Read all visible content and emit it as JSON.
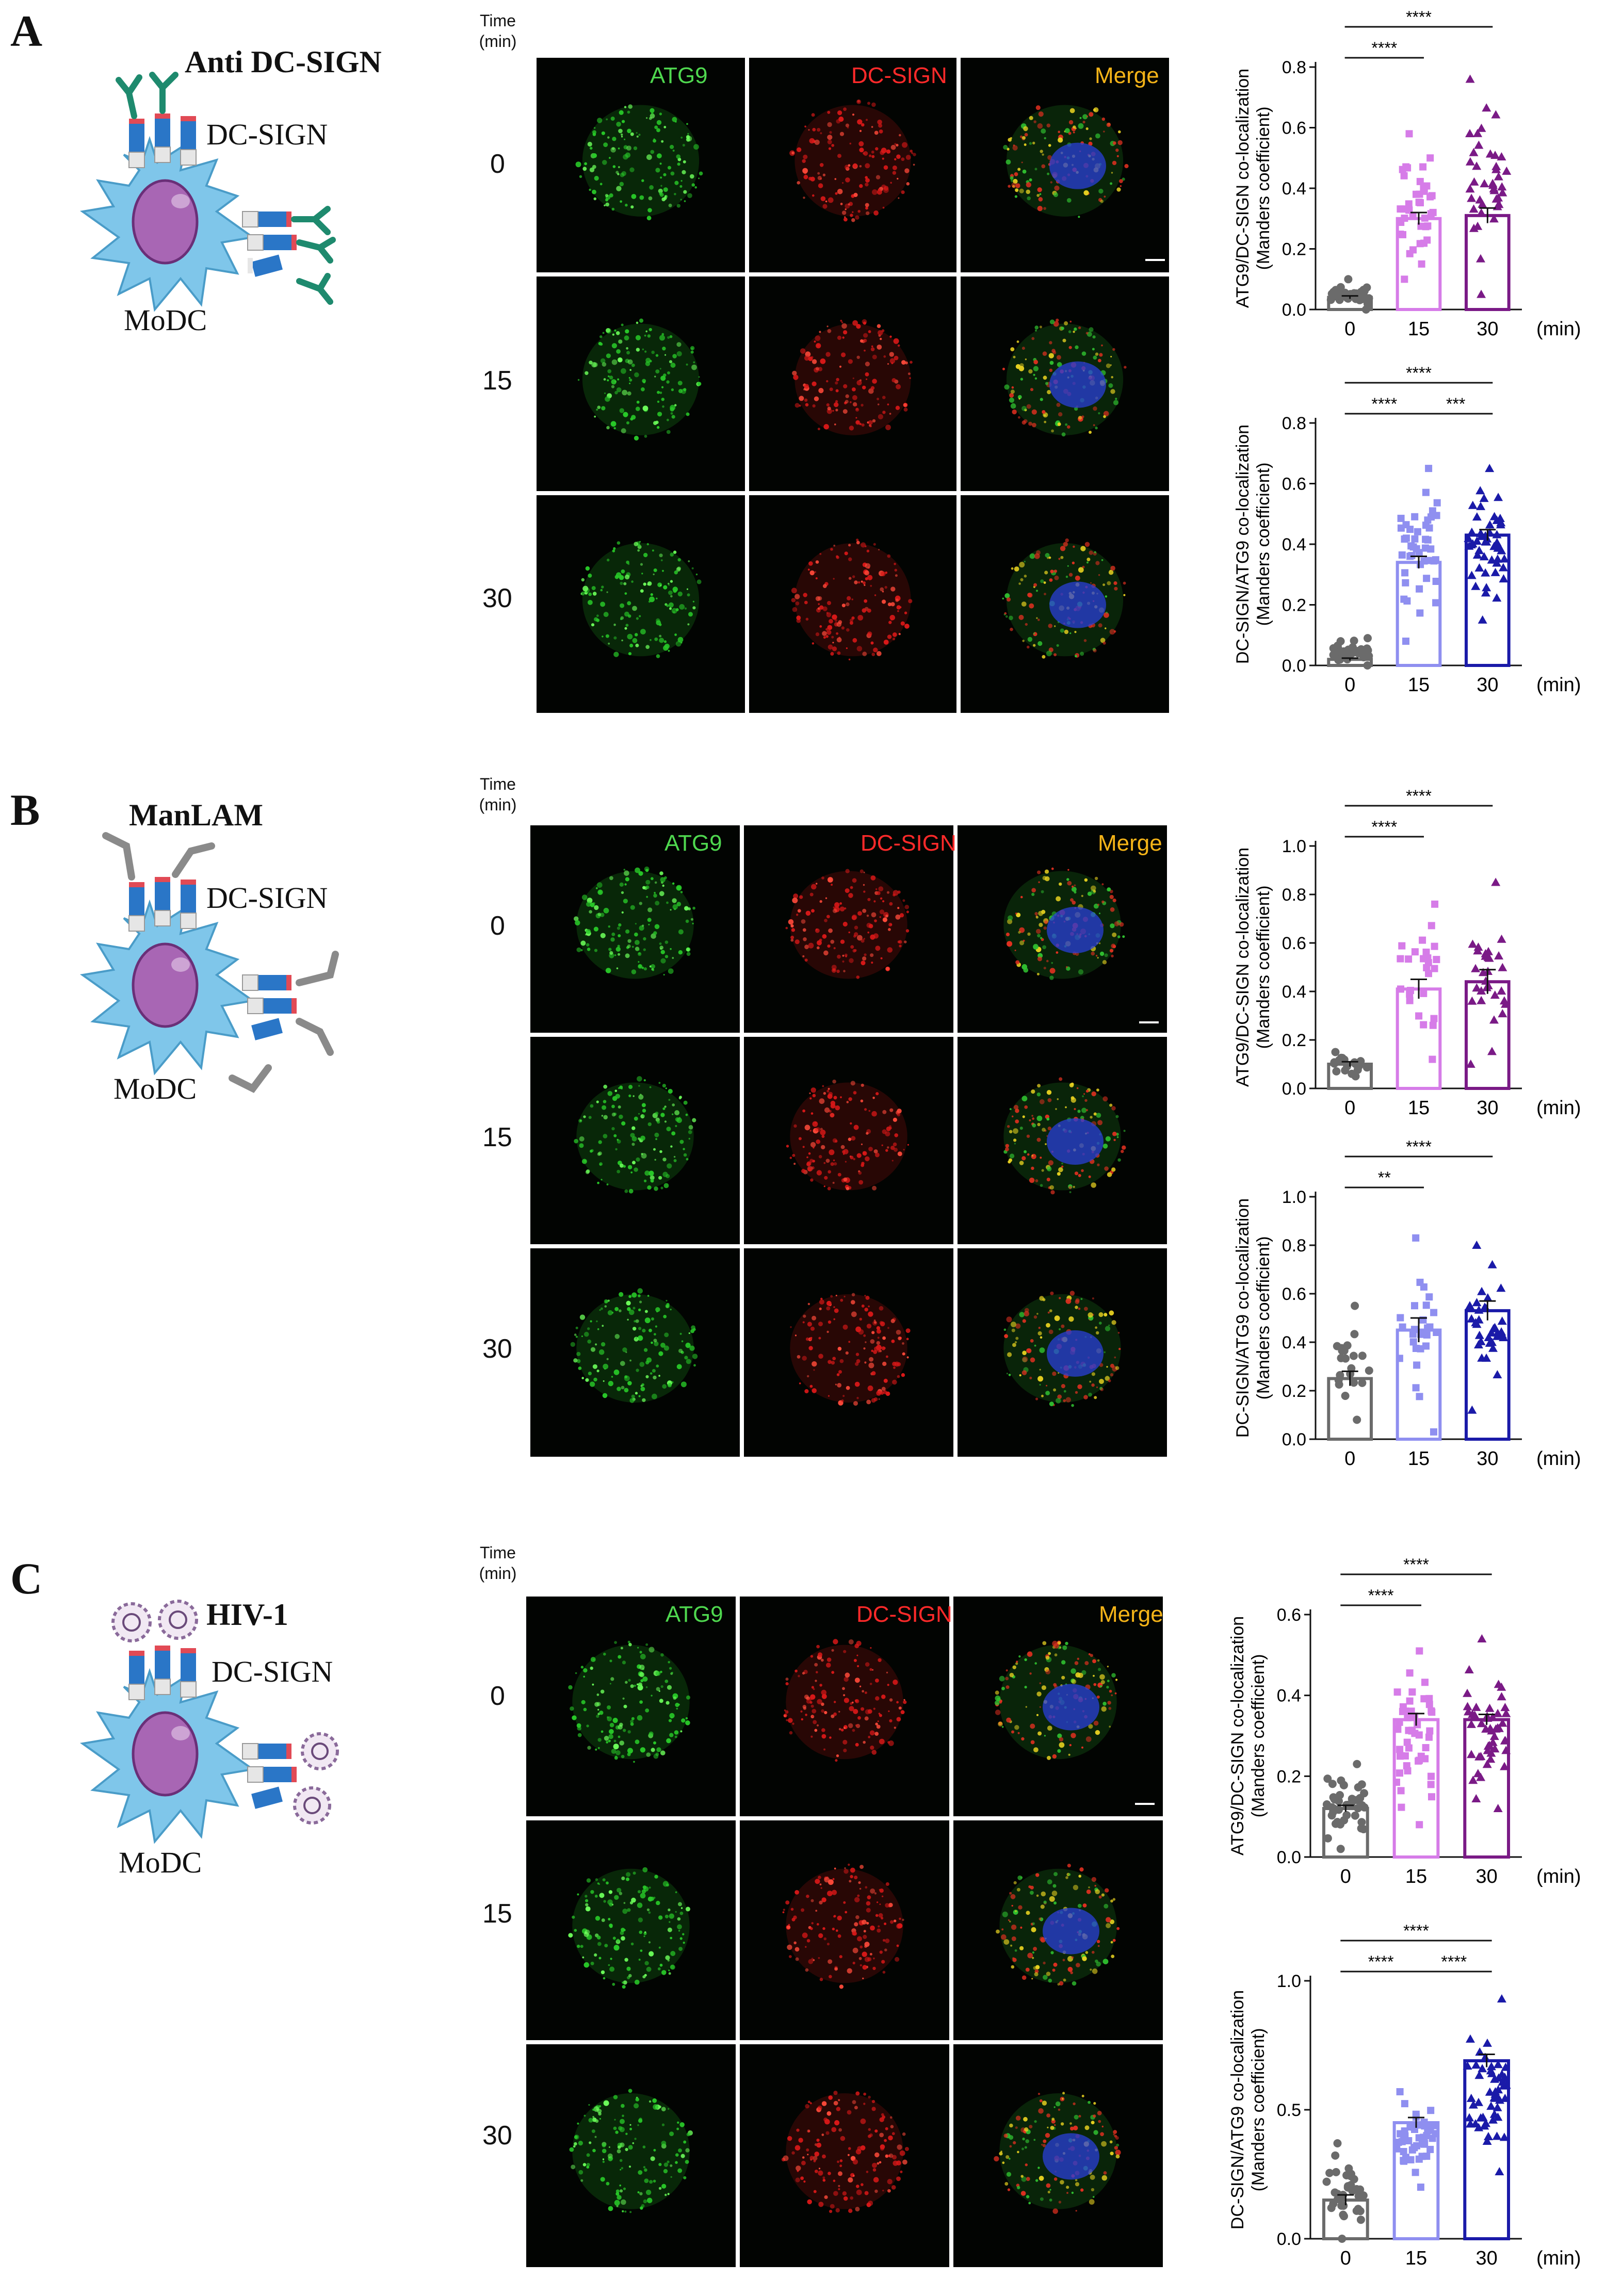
{
  "panels": [
    {
      "id": "A",
      "label": "A",
      "cartoon": {
        "ligand": "Anti DC-SIGN",
        "receptor": "DC-SIGN",
        "cell": "MoDC"
      },
      "micro": {
        "time_header": [
          "Time",
          "(min)"
        ],
        "channels": [
          "ATG9",
          "DC-SIGN",
          "Merge"
        ],
        "timepoints": [
          "0",
          "15",
          "30"
        ]
      },
      "charts": [
        {
          "type": "bar",
          "ylabel": [
            "ATG9/DC-SIGN co-localization",
            "(Manders coefficient)"
          ],
          "categories": [
            "0",
            "15",
            "30"
          ],
          "unit_label": "(min)",
          "yticks": [
            "0.0",
            "0.2",
            "0.4",
            "0.6",
            "0.8"
          ],
          "ylim": [
            0,
            0.8
          ],
          "values": [
            0.04,
            0.3,
            0.31
          ],
          "errors": [
            0.005,
            0.02,
            0.025
          ],
          "colors": [
            "#6b6b6b",
            "#d67ce8",
            "#7a1a86"
          ],
          "markers": [
            "circle",
            "square",
            "triangle"
          ],
          "point_ranges": [
            [
              0.0,
              0.1
            ],
            [
              0.1,
              0.58
            ],
            [
              0.05,
              0.76
            ]
          ],
          "point_counts": [
            40,
            40,
            40
          ],
          "significance": [
            {
              "from": 0,
              "to": 1,
              "label": "****",
              "level": 1
            },
            {
              "from": 0,
              "to": 2,
              "label": "****",
              "level": 2
            }
          ]
        },
        {
          "type": "bar",
          "ylabel": [
            "DC-SIGN/ATG9 co-localization",
            "(Manders coefficient)"
          ],
          "categories": [
            "0",
            "15",
            "30"
          ],
          "unit_label": "(min)",
          "yticks": [
            "0.0",
            "0.2",
            "0.4",
            "0.6",
            "0.8"
          ],
          "ylim": [
            0,
            0.8
          ],
          "values": [
            0.02,
            0.34,
            0.43
          ],
          "errors": [
            0.004,
            0.02,
            0.018
          ],
          "colors": [
            "#6b6b6b",
            "#8f8ff0",
            "#1a1aa8"
          ],
          "markers": [
            "circle",
            "square",
            "triangle"
          ],
          "point_ranges": [
            [
              0.0,
              0.09
            ],
            [
              0.08,
              0.65
            ],
            [
              0.15,
              0.65
            ]
          ],
          "point_counts": [
            40,
            44,
            50
          ],
          "significance": [
            {
              "from": 0,
              "to": 1,
              "label": "****",
              "level": 1
            },
            {
              "from": 1,
              "to": 2,
              "label": "***",
              "level": 1
            },
            {
              "from": 0,
              "to": 2,
              "label": "****",
              "level": 2
            }
          ]
        }
      ]
    },
    {
      "id": "B",
      "label": "B",
      "cartoon": {
        "ligand": "ManLAM",
        "receptor": "DC-SIGN",
        "cell": "MoDC"
      },
      "micro": {
        "time_header": [
          "Time",
          "(min)"
        ],
        "channels": [
          "ATG9",
          "DC-SIGN",
          "Merge"
        ],
        "timepoints": [
          "0",
          "15",
          "30"
        ]
      },
      "charts": [
        {
          "type": "bar",
          "ylabel": [
            "ATG9/DC-SIGN co-localization",
            "(Manders coefficient)"
          ],
          "categories": [
            "0",
            "15",
            "30"
          ],
          "unit_label": "(min)",
          "yticks": [
            "0.0",
            "0.2",
            "0.4",
            "0.6",
            "0.8",
            "1.0"
          ],
          "ylim": [
            0,
            1.0
          ],
          "values": [
            0.1,
            0.41,
            0.44
          ],
          "errors": [
            0.01,
            0.04,
            0.05
          ],
          "colors": [
            "#6b6b6b",
            "#d67ce8",
            "#7a1a86"
          ],
          "markers": [
            "circle",
            "square",
            "triangle"
          ],
          "point_ranges": [
            [
              0.05,
              0.15
            ],
            [
              0.12,
              0.76
            ],
            [
              0.1,
              0.85
            ]
          ],
          "point_counts": [
            20,
            26,
            30
          ],
          "significance": [
            {
              "from": 0,
              "to": 1,
              "label": "****",
              "level": 1
            },
            {
              "from": 0,
              "to": 2,
              "label": "****",
              "level": 2
            }
          ]
        },
        {
          "type": "bar",
          "ylabel": [
            "DC-SIGN/ATG9 co-localization",
            "(Manders coefficient)"
          ],
          "categories": [
            "0",
            "15",
            "30"
          ],
          "unit_label": "(min)",
          "yticks": [
            "0.0",
            "0.2",
            "0.4",
            "0.6",
            "0.8",
            "1.0"
          ],
          "ylim": [
            0,
            1.0
          ],
          "values": [
            0.25,
            0.45,
            0.53
          ],
          "errors": [
            0.03,
            0.05,
            0.04
          ],
          "colors": [
            "#6b6b6b",
            "#8f8ff0",
            "#1a1aa8"
          ],
          "markers": [
            "circle",
            "square",
            "triangle"
          ],
          "point_ranges": [
            [
              0.08,
              0.55
            ],
            [
              0.03,
              0.83
            ],
            [
              0.12,
              0.8
            ]
          ],
          "point_counts": [
            22,
            26,
            34
          ],
          "significance": [
            {
              "from": 0,
              "to": 1,
              "label": "**",
              "level": 1
            },
            {
              "from": 0,
              "to": 2,
              "label": "****",
              "level": 2
            }
          ]
        }
      ]
    },
    {
      "id": "C",
      "label": "C",
      "cartoon": {
        "ligand": "HIV-1",
        "receptor": "DC-SIGN",
        "cell": "MoDC"
      },
      "micro": {
        "time_header": [
          "Time",
          "(min)"
        ],
        "channels": [
          "ATG9",
          "DC-SIGN",
          "Merge"
        ],
        "timepoints": [
          "0",
          "15",
          "30"
        ]
      },
      "charts": [
        {
          "type": "bar",
          "ylabel": [
            "ATG9/DC-SIGN co-localization",
            "(Manders coefficient)"
          ],
          "categories": [
            "0",
            "15",
            "30"
          ],
          "unit_label": "(min)",
          "yticks": [
            "0.0",
            "0.2",
            "0.4",
            "0.6"
          ],
          "ylim": [
            0,
            0.6
          ],
          "values": [
            0.12,
            0.34,
            0.34
          ],
          "errors": [
            0.008,
            0.015,
            0.013
          ],
          "colors": [
            "#6b6b6b",
            "#d67ce8",
            "#7a1a86"
          ],
          "markers": [
            "circle",
            "square",
            "triangle"
          ],
          "point_ranges": [
            [
              0.02,
              0.23
            ],
            [
              0.08,
              0.51
            ],
            [
              0.12,
              0.54
            ]
          ],
          "point_counts": [
            40,
            48,
            48
          ],
          "significance": [
            {
              "from": 0,
              "to": 1,
              "label": "****",
              "level": 1
            },
            {
              "from": 0,
              "to": 2,
              "label": "****",
              "level": 2
            }
          ]
        },
        {
          "type": "bar",
          "ylabel": [
            "DC-SIGN/ATG9 co-localization",
            "(Manders coefficient)"
          ],
          "categories": [
            "0",
            "15",
            "30"
          ],
          "unit_label": "(min)",
          "yticks": [
            "0.0",
            "0.5",
            "1.0"
          ],
          "ylim": [
            0,
            1.0
          ],
          "values": [
            0.15,
            0.45,
            0.69
          ],
          "errors": [
            0.02,
            0.02,
            0.025
          ],
          "colors": [
            "#6b6b6b",
            "#8f8ff0",
            "#1a1aa8"
          ],
          "markers": [
            "circle",
            "square",
            "triangle"
          ],
          "point_ranges": [
            [
              0.0,
              0.37
            ],
            [
              0.2,
              0.57
            ],
            [
              0.26,
              0.93
            ]
          ],
          "point_counts": [
            34,
            48,
            52
          ],
          "significance": [
            {
              "from": 0,
              "to": 1,
              "label": "****",
              "level": 1
            },
            {
              "from": 1,
              "to": 2,
              "label": "****",
              "level": 1
            },
            {
              "from": 0,
              "to": 2,
              "label": "****",
              "level": 2
            }
          ]
        }
      ]
    }
  ]
}
